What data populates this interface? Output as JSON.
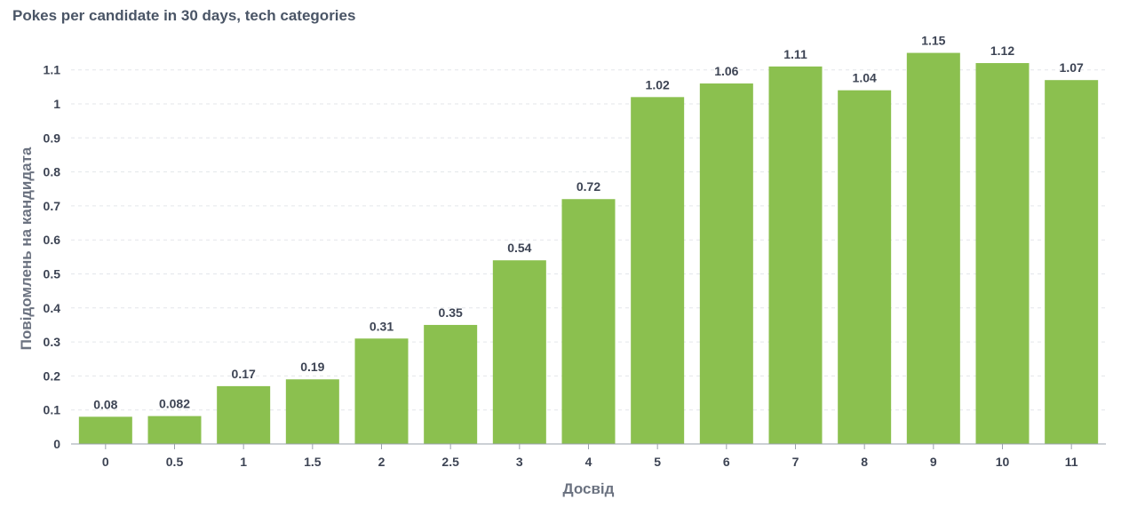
{
  "chart_data": {
    "type": "bar",
    "title": "Pokes per candidate in 30 days, tech categories",
    "xlabel": "Досвід",
    "ylabel": "Повідомлень на кандидата",
    "categories": [
      "0",
      "0.5",
      "1",
      "1.5",
      "2",
      "2.5",
      "3",
      "4",
      "5",
      "6",
      "7",
      "8",
      "9",
      "10",
      "11"
    ],
    "values": [
      0.08,
      0.082,
      0.17,
      0.19,
      0.31,
      0.35,
      0.54,
      0.72,
      1.02,
      1.06,
      1.11,
      1.04,
      1.15,
      1.12,
      1.07
    ],
    "value_labels": [
      "0.08",
      "0.082",
      "0.17",
      "0.19",
      "0.31",
      "0.35",
      "0.54",
      "0.72",
      "1.02",
      "1.06",
      "1.11",
      "1.04",
      "1.15",
      "1.12",
      "1.07"
    ],
    "yticks": [
      "0",
      "0.1",
      "0.2",
      "0.3",
      "0.4",
      "0.5",
      "0.6",
      "0.7",
      "0.8",
      "0.9",
      "1",
      "1.1"
    ],
    "ylim": [
      0,
      1.2
    ],
    "grid": "horizontal dashed",
    "bar_color": "#8bc04f"
  }
}
